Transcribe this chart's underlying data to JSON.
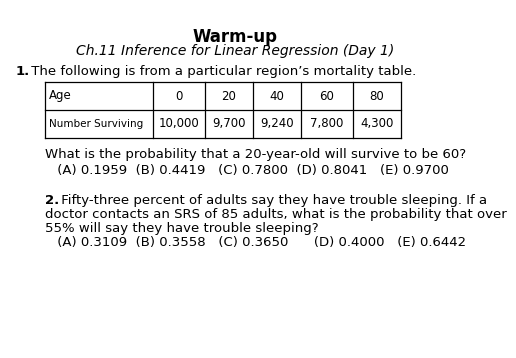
{
  "title": "Warm-up",
  "subtitle": "Ch.11 Inference for Linear Regression (Day 1)",
  "q1_intro_bold": "1.",
  "q1_intro_rest": " The following is from a particular region’s mortality table.",
  "table_col_labels": [
    "Age",
    "0",
    "20",
    "40",
    "60",
    "80"
  ],
  "table_row_label": "Number Surviving",
  "table_values": [
    "10,000",
    "9,700",
    "9,240",
    "7,800",
    "4,300"
  ],
  "q1_question": "What is the probability that a 20-year-old will survive to be 60?",
  "q1_answers": " (A) 0.1959  (B) 0.4419   (C) 0.7800  (D) 0.8041   (E) 0.9700",
  "q2_bold": "2.",
  "q2_rest": " Fifty-three percent of adults say they have trouble sleeping. If a",
  "q2_line2": "doctor contacts an SRS of 85 adults, what is the probability that over",
  "q2_line3": "55% will say they have trouble sleeping?",
  "q2_answers": " (A) 0.3109  (B) 0.3558   (C) 0.3650      (D) 0.4000   (E) 0.6442",
  "bg_color": "#ffffff",
  "text_color": "#000000",
  "font_size_title": 12,
  "font_size_subtitle": 10,
  "font_size_body": 9.5,
  "font_size_table": 8.5
}
